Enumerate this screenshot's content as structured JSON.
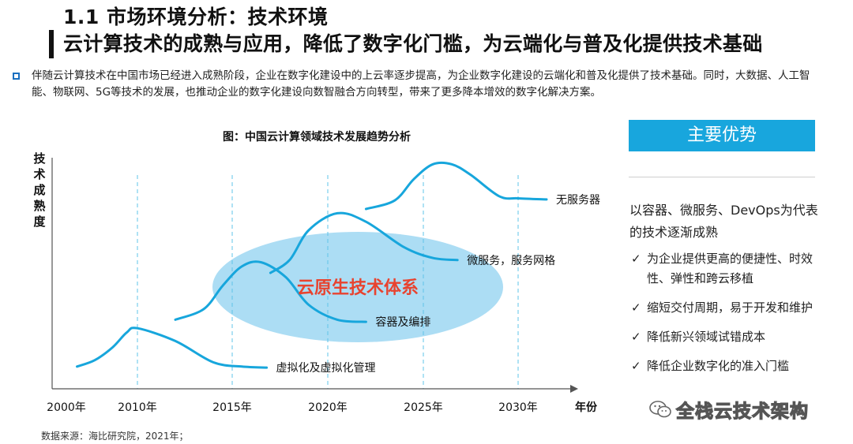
{
  "header": {
    "title": "1.1 市场环境分析：技术环境",
    "subtitle": "云计算技术的成熟与应用，降低了数字化门槛，为云端化与普及化提供技术基础"
  },
  "intro": "伴随云计算技术在中国市场已经进入成熟阶段，企业在数字化建设中的上云率逐步提高，为企业数字化建设的云端化和普及化提供了技术基础。同时，大数据、人工智能、物联网、5G等技术的发展，也推动企业的数字化建设向数智融合方向转型，带来了更多降本增效的数字化解决方案。",
  "chart_data": {
    "type": "line",
    "title": "图：中国云计算领域技术发展趋势分析",
    "xlabel": "年份",
    "ylabel": "技术成熟度",
    "x_ticks": [
      "2000年",
      "2010年",
      "2015年",
      "2020年",
      "2025年",
      "2030年"
    ],
    "x_tick_values": [
      2000,
      2010,
      2015,
      2020,
      2025,
      2030
    ],
    "xlim": [
      2000,
      2033
    ],
    "ylim": [
      0,
      100
    ],
    "gridlines": "vertical-dashed",
    "series": [
      {
        "name": "虚拟化及虚拟化管理",
        "x": [
          2001.5,
          2004.0,
          2006.5,
          2008.5,
          2010.0,
          2012.0,
          2014.0,
          2015.5,
          2016.8
        ],
        "y": [
          6,
          9,
          15,
          22,
          24,
          18,
          8,
          6,
          5.5
        ]
      },
      {
        "name": "容器及编排",
        "x": [
          2012.0,
          2013.5,
          2014.5,
          2015.5,
          2016.5,
          2017.8,
          2019.0,
          2020.5,
          2022.0
        ],
        "y": [
          28,
          33,
          44,
          53,
          55,
          48,
          35,
          28,
          27
        ]
      },
      {
        "name": "微服务，服务网格",
        "x": [
          2017.0,
          2018.0,
          2019.0,
          2020.5,
          2022.0,
          2024.0,
          2025.5,
          2026.8
        ],
        "y": [
          50,
          56,
          70,
          78,
          74,
          62,
          57,
          56
        ]
      },
      {
        "name": "无服务器",
        "x": [
          2022.0,
          2023.5,
          2024.5,
          2025.5,
          2026.5,
          2027.5,
          2029.0,
          2030.0,
          2031.5
        ],
        "y": [
          80,
          84,
          94,
          101,
          101,
          96,
          86,
          85,
          84.5
        ]
      }
    ],
    "highlight_label": "云原生技术体系",
    "colors": {
      "line": "#17a6dc",
      "ellipse": "#9dd7f2",
      "highlight_text": "#e8432f",
      "grid": "#5fc4e8"
    }
  },
  "advantages": {
    "header": "主要优势",
    "lead": "以容器、微服务、DevOps为代表的技术逐渐成熟",
    "items": [
      "为企业提供更高的便捷性、时效性、弹性和跨云移植",
      "缩短交付周期，易于开发和维护",
      "降低新兴领域试错成本",
      "降低企业数字化的准入门槛"
    ],
    "check_icon": "check-icon"
  },
  "source": "数据来源：海比研究院，2021年；",
  "watermark": {
    "text": "全栈云技术架构",
    "icon": "wechat-icon"
  }
}
